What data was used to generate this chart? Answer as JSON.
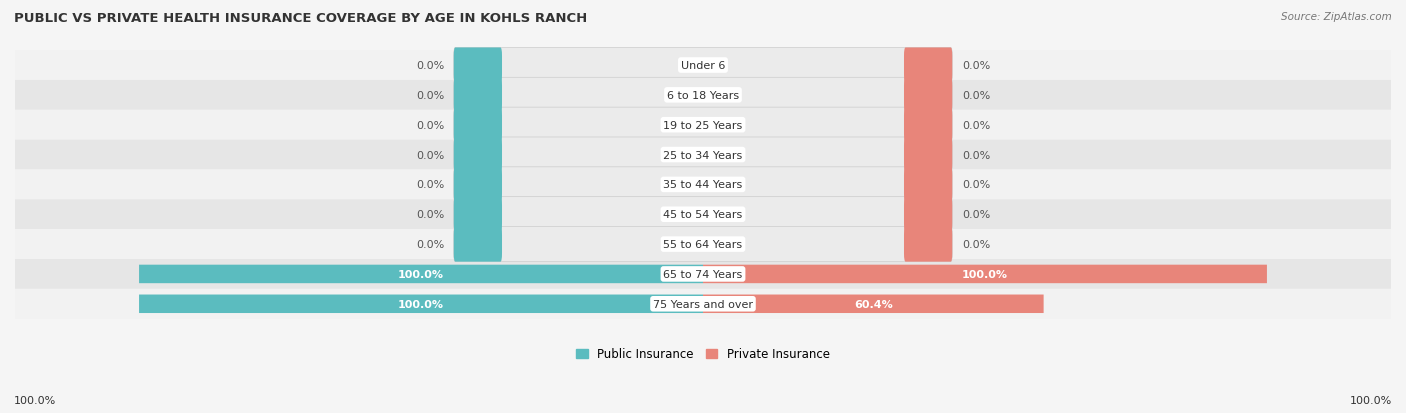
{
  "title": "PUBLIC VS PRIVATE HEALTH INSURANCE COVERAGE BY AGE IN KOHLS RANCH",
  "source": "Source: ZipAtlas.com",
  "categories": [
    "Under 6",
    "6 to 18 Years",
    "19 to 25 Years",
    "25 to 34 Years",
    "35 to 44 Years",
    "45 to 54 Years",
    "55 to 64 Years",
    "65 to 74 Years",
    "75 Years and over"
  ],
  "public_values": [
    0.0,
    0.0,
    0.0,
    0.0,
    0.0,
    0.0,
    0.0,
    100.0,
    100.0
  ],
  "private_values": [
    0.0,
    0.0,
    0.0,
    0.0,
    0.0,
    0.0,
    0.0,
    100.0,
    60.4
  ],
  "public_color": "#5bbcbf",
  "private_color": "#e8857a",
  "row_bg_light": "#f2f2f2",
  "row_bg_dark": "#e6e6e6",
  "pill_bg": "#e8e8e8",
  "label_color": "#333333",
  "title_color": "#333333",
  "legend_public": "Public Insurance",
  "legend_private": "Private Insurance",
  "axis_label_left": "100.0%",
  "axis_label_right": "100.0%",
  "max_value": 100.0,
  "stub_size": 8.0
}
